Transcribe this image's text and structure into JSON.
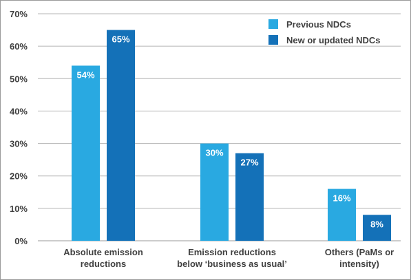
{
  "chart_data": {
    "type": "bar",
    "title": "",
    "xlabel": "",
    "ylabel": "",
    "categories": [
      [
        "Absolute emission",
        "reductions"
      ],
      [
        "Emission reductions",
        "below ‘business as usual’"
      ],
      [
        "Others (PaMs or",
        "intensity)"
      ]
    ],
    "series": [
      {
        "name": "Previous NDCs",
        "color": "#29a9e1",
        "values": [
          54,
          30,
          16
        ],
        "labels": [
          "54%",
          "30%",
          "16%"
        ]
      },
      {
        "name": "New or updated NDCs",
        "color": "#1471b8",
        "values": [
          65,
          27,
          8
        ],
        "labels": [
          "65%",
          "27%",
          "8%"
        ]
      }
    ],
    "ylim": [
      0,
      70
    ],
    "yticks": [
      0,
      10,
      20,
      30,
      40,
      50,
      60,
      70
    ],
    "ytick_labels": [
      "0%",
      "10%",
      "20%",
      "30%",
      "40%",
      "50%",
      "60%",
      "70%"
    ],
    "grid": true,
    "legend_position": "top-right"
  }
}
